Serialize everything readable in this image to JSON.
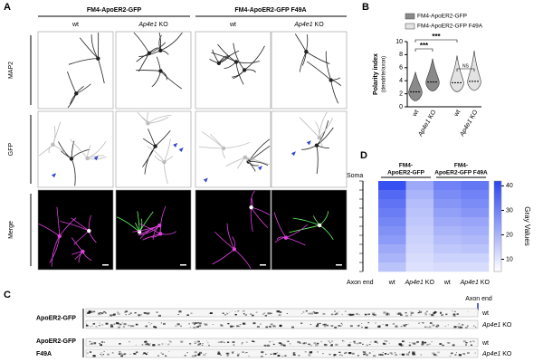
{
  "panel_labels": [
    "A",
    "B",
    "C",
    "D"
  ],
  "panel_a": {
    "group_headers": [
      "FM4-ApoER2-GFP",
      "FM4-ApoER2-GFP F49A"
    ],
    "column_headers": [
      "wt",
      "Ap4e1 KO",
      "wt",
      "Ap4e1 KO"
    ],
    "row_labels": [
      "MAP2",
      "GFP",
      "Merge"
    ]
  },
  "panel_c": {
    "axon_end": "Axon end",
    "groups": [
      {
        "label": [
          "ApoER2-GFP"
        ],
        "rows": [
          "wt",
          "Ap4e1 KO"
        ]
      },
      {
        "label": [
          "ApoER2-GFP",
          "F49A"
        ],
        "rows": [
          "wt",
          "Ap4e1 KO"
        ]
      }
    ]
  },
  "chart_data": [
    {
      "type": "violin",
      "y_label": "Polarity index",
      "y_sublabel": "(dendrite/axon)",
      "categories": [
        "wt",
        "Ap4e1 KO",
        "wt",
        "Ap4e1 KO"
      ],
      "series": [
        {
          "name": "FM4-ApoER2-GFP",
          "color": "#8a8a8a",
          "values": [
            2.3,
            3.8,
            null,
            null
          ]
        },
        {
          "name": "FM4-ApoER2-GFP F49A",
          "color": "#e2e2e2",
          "values": [
            null,
            null,
            3.7,
            3.9
          ]
        }
      ],
      "ylim": [
        0,
        10
      ],
      "yticks": [
        0,
        2,
        4,
        6,
        8,
        10
      ],
      "annotations": [
        "***",
        "***",
        "NS"
      ]
    },
    {
      "type": "heatmap",
      "group_headers": [
        [
          "FM4-",
          "ApoER2-GFP"
        ],
        [
          "FM4-",
          "ApoER2-GFP F49A"
        ]
      ],
      "categories": [
        "wt",
        "Ap4e1 KO",
        "wt",
        "Ap4e1 KO"
      ],
      "row_start": "Soma",
      "row_end": "Axon end",
      "colorbar_label": "Gray Values",
      "ylim": [
        5,
        42
      ],
      "yticks": [
        10,
        20,
        30,
        40
      ],
      "color": "#2b46f0",
      "values": [
        [
          40,
          22,
          30,
          32
        ],
        [
          35,
          20,
          28,
          30
        ],
        [
          33,
          18,
          26,
          28
        ],
        [
          31,
          17,
          24,
          26
        ],
        [
          29,
          16,
          22,
          23
        ],
        [
          27,
          15,
          20,
          21
        ],
        [
          25,
          14,
          18,
          19
        ],
        [
          22,
          13,
          16,
          17
        ],
        [
          20,
          12,
          14,
          14
        ],
        [
          17,
          11,
          12,
          12
        ]
      ]
    }
  ]
}
